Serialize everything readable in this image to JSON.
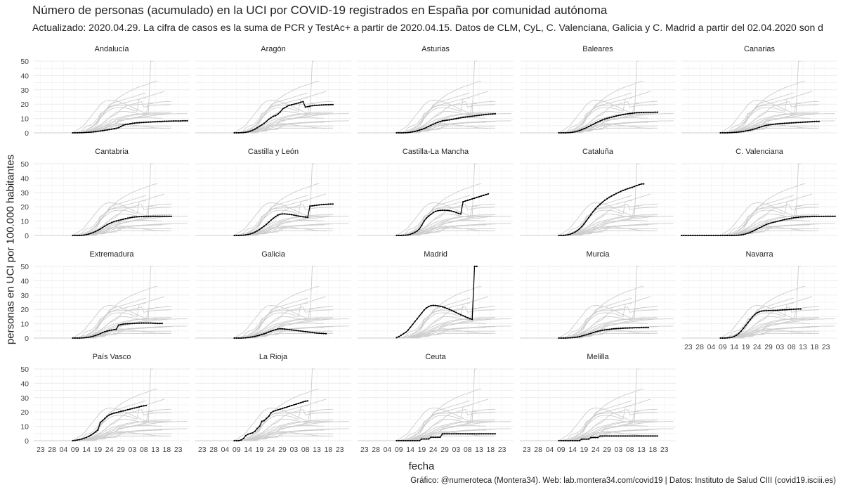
{
  "chart_data": {
    "type": "line",
    "title": "Número de personas (acumulado) en la UCI por COVID-19 registrados en España por comunidad autónoma",
    "subtitle": "Actualizado: 2020.04.29. La cifra de casos es la suma de PCR y TestAc+ a partir de 2020.04.15. Datos de CLM, CyL, C. Valenciana, Galicia y C. Madrid a partir del 02.04.2020 son d",
    "xlabel": "fecha",
    "ylabel": "personas en UCI por 100.000 habitantes",
    "caption": "Gráfico: @numeroteca (Montera34). Web: lab.montera34.com/covid19 | Datos: Instituto de Salud CIII (covid19.isciii.es)",
    "x_ticks": [
      "23",
      "28",
      "04",
      "09",
      "14",
      "19",
      "24",
      "29",
      "03",
      "08",
      "13",
      "18",
      "23"
    ],
    "x_tick_dates": [
      "2020-02-23",
      "2020-02-28",
      "2020-03-04",
      "2020-03-09",
      "2020-03-14",
      "2020-03-19",
      "2020-03-24",
      "2020-03-29",
      "2020-04-03",
      "2020-04-08",
      "2020-04-13",
      "2020-04-18",
      "2020-04-23"
    ],
    "xlim": [
      "2020-02-20",
      "2020-04-28"
    ],
    "ylim": [
      0,
      50
    ],
    "y_ticks": [
      0,
      10,
      20,
      30,
      40,
      50
    ],
    "grid": true,
    "highlight_color": "#000000",
    "background_color": "#cccccc",
    "facet_columns": 5,
    "series": [
      {
        "name": "Andalucía",
        "start": "2020-03-08",
        "values": [
          0,
          0,
          0,
          0.1,
          0.1,
          0.2,
          0.3,
          0.4,
          0.5,
          0.7,
          0.9,
          1.1,
          1.3,
          1.5,
          1.8,
          2.0,
          2.3,
          2.6,
          2.9,
          3.2,
          3.6,
          4.4,
          5.3,
          5.8,
          6.0,
          6.3,
          6.6,
          6.8,
          7.0,
          7.1,
          7.2,
          7.3,
          7.4,
          7.5,
          7.6,
          7.7,
          7.8,
          7.9,
          8.0,
          8.0,
          8.1,
          8.1,
          8.2,
          8.2,
          8.3,
          8.3,
          8.3,
          8.3,
          8.4,
          8.4,
          8.4
        ]
      },
      {
        "name": "Aragón",
        "start": "2020-03-08",
        "values": [
          0,
          0,
          0,
          0.1,
          0.2,
          0.4,
          0.7,
          1.2,
          1.8,
          2.6,
          3.6,
          4.6,
          5.6,
          6.6,
          8.0,
          9.4,
          10.5,
          11.5,
          12.0,
          13.0,
          14.5,
          16.5,
          17.5,
          18.5,
          19.2,
          19.6,
          20.0,
          20.4,
          20.8,
          21.3,
          21.8,
          18.0,
          18.3,
          18.6,
          18.9,
          19.1,
          19.2,
          19.3,
          19.4,
          19.5,
          19.6,
          19.6,
          19.7,
          19.7
        ]
      },
      {
        "name": "Asturias",
        "start": "2020-03-08",
        "values": [
          0,
          0,
          0,
          0,
          0.1,
          0.2,
          0.4,
          0.7,
          1.0,
          1.4,
          1.9,
          2.4,
          3.0,
          3.7,
          4.5,
          5.3,
          6.0,
          6.7,
          7.3,
          7.9,
          8.4,
          8.6,
          8.8,
          9.0,
          9.3,
          9.6,
          9.9,
          10.2,
          10.5,
          10.8,
          11.0,
          11.2,
          11.4,
          11.6,
          11.8,
          12.0,
          12.2,
          12.4,
          12.6,
          12.8,
          13.0,
          13.1,
          13.2,
          13.3
        ]
      },
      {
        "name": "Baleares",
        "start": "2020-03-08",
        "values": [
          0,
          0,
          0,
          0,
          0.1,
          0.2,
          0.4,
          0.7,
          1.1,
          1.6,
          2.2,
          2.9,
          3.6,
          4.4,
          5.2,
          6.0,
          6.8,
          7.6,
          8.3,
          9.0,
          9.6,
          10.1,
          10.5,
          10.9,
          11.3,
          11.7,
          12.1,
          12.4,
          12.7,
          13.0,
          13.3,
          13.5,
          13.7,
          13.9,
          14.0,
          14.1,
          14.2,
          14.2,
          14.3,
          14.3,
          14.3,
          14.3,
          14.4,
          14.4
        ]
      },
      {
        "name": "Canarias",
        "start": "2020-03-08",
        "values": [
          0,
          0,
          0,
          0,
          0.1,
          0.2,
          0.3,
          0.4,
          0.6,
          0.8,
          1.0,
          1.3,
          1.6,
          1.9,
          2.3,
          2.8,
          3.3,
          3.8,
          4.3,
          4.8,
          5.2,
          5.5,
          5.7,
          5.9,
          6.1,
          6.3,
          6.4,
          6.5,
          6.6,
          6.7,
          6.8,
          6.9,
          7.0,
          7.1,
          7.2,
          7.3,
          7.4,
          7.5,
          7.6,
          7.7,
          7.8,
          7.9,
          8.0,
          8.0
        ]
      },
      {
        "name": "Cantabria",
        "start": "2020-03-08",
        "values": [
          0,
          0,
          0,
          0,
          0.1,
          0.3,
          0.6,
          1.0,
          1.5,
          2.1,
          2.8,
          3.6,
          4.5,
          5.5,
          6.5,
          7.5,
          8.3,
          9.0,
          9.6,
          10.1,
          10.5,
          10.9,
          11.3,
          11.7,
          12.1,
          12.4,
          12.7,
          12.9,
          13.0,
          13.1,
          13.2,
          13.2,
          13.3,
          13.3,
          13.3,
          13.4,
          13.4,
          13.4,
          13.4,
          13.4,
          13.4,
          13.4,
          13.4,
          13.4
        ]
      },
      {
        "name": "Castilla y León",
        "start": "2020-03-08",
        "values": [
          0,
          0,
          0,
          0.1,
          0.2,
          0.4,
          0.7,
          1.1,
          1.6,
          2.3,
          3.2,
          4.2,
          5.3,
          6.5,
          7.8,
          9.2,
          10.6,
          12.0,
          13.2,
          14.2,
          14.8,
          15.0,
          15.0,
          14.9,
          14.7,
          14.5,
          14.2,
          13.9,
          13.6,
          13.3,
          13.0,
          12.8,
          12.6,
          20.5,
          20.7,
          20.9,
          21.1,
          21.3,
          21.5,
          21.6,
          21.7,
          21.8,
          21.9,
          21.9
        ]
      },
      {
        "name": "Castilla-La Mancha",
        "start": "2020-03-08",
        "values": [
          0,
          0,
          0,
          0.1,
          0.2,
          0.4,
          0.8,
          1.4,
          2.2,
          3.2,
          4.6,
          7.0,
          10.0,
          12.0,
          13.5,
          14.8,
          16.0,
          16.8,
          17.3,
          17.5,
          17.6,
          17.6,
          17.5,
          17.3,
          17.0,
          16.6,
          16.0,
          15.4,
          15.0,
          23.5,
          24.0,
          24.5,
          25.0,
          25.5,
          26.0,
          26.5,
          27.0,
          27.5,
          28.0,
          28.5,
          29.0
        ]
      },
      {
        "name": "Cataluña",
        "start": "2020-03-08",
        "values": [
          0,
          0,
          0,
          0.2,
          0.5,
          0.9,
          1.5,
          2.3,
          3.3,
          4.6,
          6.2,
          8.1,
          10.2,
          12.4,
          14.6,
          16.7,
          18.6,
          20.3,
          21.8,
          23.2,
          24.5,
          25.6,
          26.6,
          27.5,
          28.4,
          29.2,
          30.0,
          30.7,
          31.4,
          32.0,
          32.6,
          33.1,
          33.6,
          34.2,
          34.8,
          35.4,
          35.9,
          36.0
        ]
      },
      {
        "name": "C. Valenciana",
        "start": "2020-02-20",
        "values": [
          0,
          0,
          0,
          0,
          0,
          0,
          0,
          0,
          0,
          0,
          0,
          0,
          0,
          0,
          0,
          0,
          0,
          0,
          0,
          0,
          0,
          0,
          0,
          0,
          0.1,
          0.2,
          0.4,
          0.7,
          1.1,
          1.6,
          2.2,
          2.9,
          3.7,
          4.5,
          5.3,
          6.1,
          6.9,
          7.6,
          8.2,
          8.7,
          9.1,
          9.5,
          9.9,
          10.3,
          10.7,
          11.1,
          11.4,
          11.7,
          12.0,
          12.3,
          12.5,
          12.7,
          12.9,
          13.0,
          13.1,
          13.2,
          13.2,
          13.3,
          13.3,
          13.3,
          13.3,
          13.3,
          13.3,
          13.4,
          13.4,
          13.4,
          13.4,
          13.4
        ]
      },
      {
        "name": "Extremadura",
        "start": "2020-03-08",
        "values": [
          0,
          0,
          0,
          0,
          0.1,
          0.2,
          0.4,
          0.6,
          0.9,
          1.3,
          1.8,
          2.4,
          3.1,
          3.8,
          4.4,
          4.9,
          5.3,
          5.6,
          5.9,
          6.1,
          9.0,
          9.4,
          9.7,
          9.9,
          10.0,
          10.1,
          10.2,
          10.3,
          10.4,
          10.4,
          10.5,
          10.5,
          10.5,
          10.5,
          10.5,
          10.4,
          10.3,
          10.2,
          10.2,
          10.2
        ]
      },
      {
        "name": "Galicia",
        "start": "2020-03-08",
        "values": [
          0,
          0,
          0,
          0,
          0.1,
          0.2,
          0.4,
          0.6,
          0.9,
          1.2,
          1.6,
          2.0,
          2.5,
          3.0,
          3.6,
          4.2,
          4.8,
          5.4,
          5.9,
          6.3,
          6.5,
          6.4,
          6.3,
          6.1,
          5.9,
          5.7,
          5.5,
          5.3,
          5.1,
          4.9,
          4.7,
          4.5,
          4.3,
          4.1,
          3.9,
          3.7,
          3.5,
          3.4,
          3.3,
          3.2,
          3.1
        ]
      },
      {
        "name": "Madrid",
        "start": "2020-03-08",
        "values": [
          0.3,
          1.0,
          2.0,
          3.0,
          4.0,
          5.5,
          7.5,
          9.5,
          11.5,
          13.5,
          15.5,
          17.5,
          19.5,
          21.0,
          22.0,
          22.6,
          22.8,
          22.7,
          22.5,
          22.2,
          21.8,
          21.3,
          20.7,
          20.0,
          19.3,
          18.6,
          17.8,
          17.0,
          16.3,
          15.6,
          14.9,
          14.2,
          13.5,
          13.0,
          50.0,
          50.0
        ]
      },
      {
        "name": "Murcia",
        "start": "2020-03-08",
        "values": [
          0,
          0,
          0,
          0,
          0.1,
          0.2,
          0.3,
          0.5,
          0.7,
          1.0,
          1.4,
          1.8,
          2.3,
          2.8,
          3.3,
          3.8,
          4.3,
          4.7,
          5.1,
          5.4,
          5.7,
          5.9,
          6.1,
          6.3,
          6.5,
          6.6,
          6.7,
          6.8,
          6.9,
          7.0,
          7.0,
          7.1,
          7.1,
          7.2,
          7.2,
          7.2,
          7.3,
          7.3,
          7.3,
          7.3
        ]
      },
      {
        "name": "Navarra",
        "start": "2020-03-08",
        "values": [
          0,
          0,
          0,
          0.1,
          0.3,
          0.6,
          1.2,
          2.0,
          3.2,
          4.8,
          6.8,
          8.8,
          10.8,
          12.8,
          14.8,
          16.4,
          17.6,
          18.4,
          18.8,
          19.0,
          19.1,
          19.2,
          19.2,
          19.3,
          19.3,
          19.4,
          19.5,
          19.6,
          19.7,
          19.8,
          19.9,
          20.0,
          20.1,
          20.2,
          20.3,
          20.3
        ]
      },
      {
        "name": "País Vasco",
        "start": "2020-03-08",
        "values": [
          0,
          0.2,
          0.5,
          0.8,
          1.2,
          1.7,
          2.3,
          3.1,
          4.0,
          5.0,
          6.2,
          7.5,
          12.5,
          14.0,
          15.5,
          17.0,
          18.0,
          18.7,
          19.2,
          19.6,
          20.0,
          20.4,
          20.8,
          21.2,
          21.6,
          22.0,
          22.4,
          22.8,
          23.2,
          23.6,
          24.0,
          24.3,
          24.5
        ]
      },
      {
        "name": "La Rioja",
        "start": "2020-03-08",
        "values": [
          0,
          0,
          0,
          0.5,
          1.5,
          3.5,
          4.5,
          5.0,
          5.5,
          6.5,
          8.5,
          10.0,
          13.5,
          14.0,
          15.5,
          17.0,
          19.5,
          20.5,
          21.0,
          21.5,
          22.0,
          22.5,
          23.0,
          23.5,
          24.0,
          24.5,
          25.0,
          25.5,
          26.0,
          26.5,
          27.0,
          27.5,
          27.8
        ]
      },
      {
        "name": "Ceuta",
        "start": "2020-03-08",
        "values": [
          0,
          0,
          0,
          0,
          0,
          0,
          0,
          0,
          0,
          0,
          0,
          1.2,
          1.2,
          1.2,
          1.2,
          2.4,
          2.4,
          2.4,
          2.4,
          2.4,
          4.8,
          4.8,
          4.8,
          4.8,
          4.8,
          4.8,
          4.8,
          4.8,
          4.8,
          4.8,
          4.8,
          4.8,
          4.8,
          4.8,
          4.8,
          4.8,
          4.8,
          4.8,
          4.8,
          4.8,
          4.8,
          4.8,
          4.8,
          4.8
        ]
      },
      {
        "name": "Melilla",
        "start": "2020-03-08",
        "values": [
          0,
          0,
          0,
          0,
          0,
          0,
          0,
          0,
          0,
          0,
          1.1,
          1.1,
          1.1,
          1.1,
          2.2,
          2.2,
          2.2,
          2.2,
          3.3,
          3.3,
          3.3,
          3.3,
          3.3,
          3.3,
          3.3,
          3.3,
          3.3,
          3.3,
          3.3,
          3.3,
          3.3,
          3.3,
          3.3,
          3.3,
          3.3,
          3.3,
          3.3,
          3.3,
          3.3,
          3.3,
          3.3,
          3.3,
          3.3,
          3.3
        ]
      }
    ]
  }
}
